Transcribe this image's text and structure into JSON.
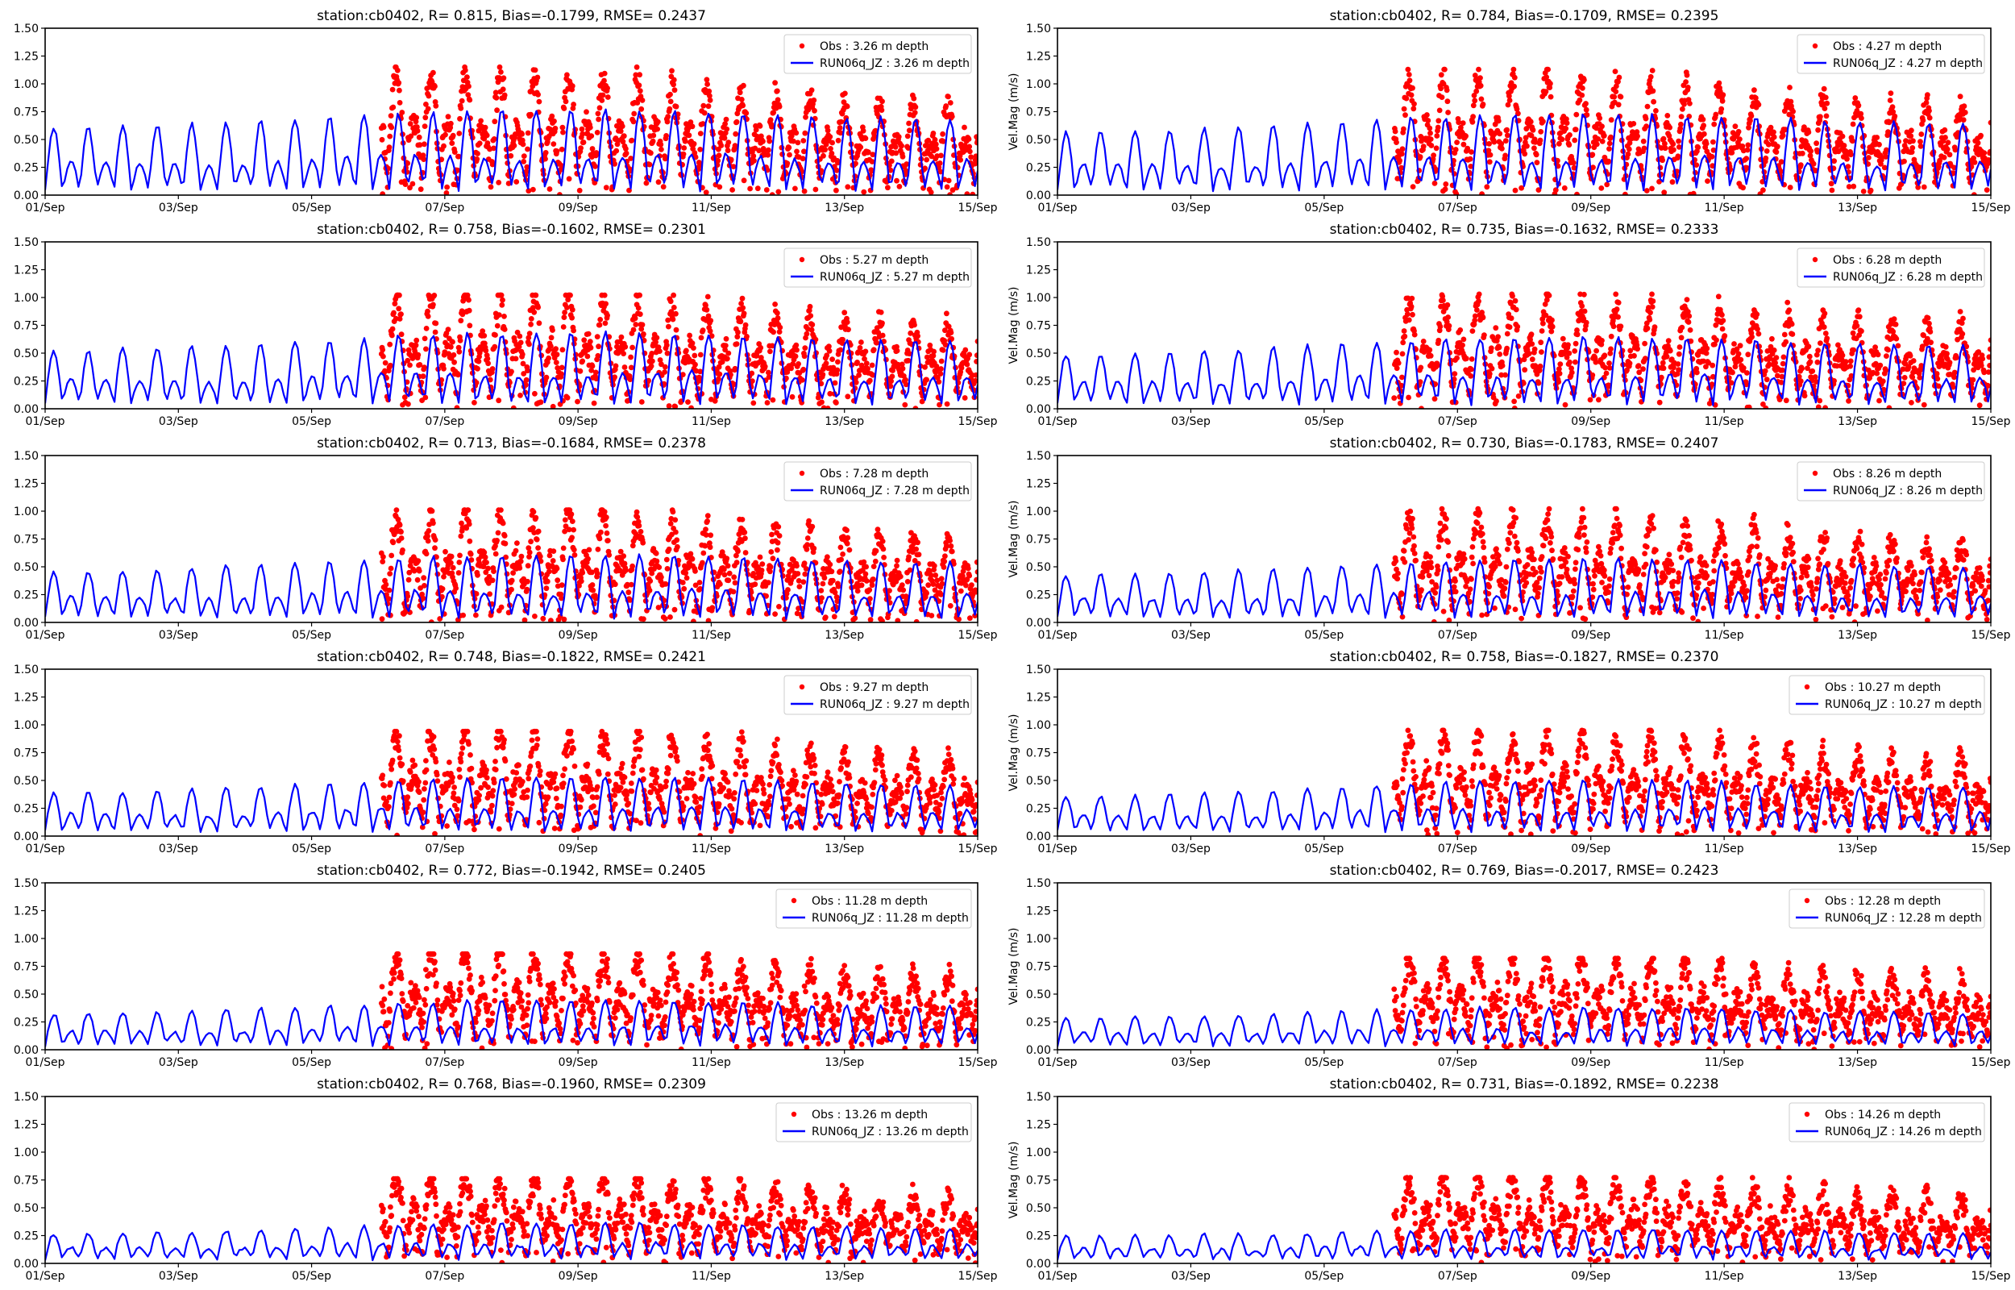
{
  "figure": {
    "type": "line+scatter",
    "xlim_labels": [
      "01/Sep",
      "15/Sep"
    ],
    "x_ticks": [
      "01/Sep",
      "03/Sep",
      "05/Sep",
      "07/Sep",
      "09/Sep",
      "11/Sep",
      "13/Sep",
      "15/Sep"
    ],
    "y_ticks": [
      "0.00",
      "0.25",
      "0.50",
      "0.75",
      "1.00",
      "1.25",
      "1.50"
    ],
    "ylabel_right_column": "Vel.Mag (m/s)",
    "colors": {
      "obs": "#ff0000",
      "model": "#0000ff",
      "axis": "#000000",
      "legend_border": "#cccccc"
    }
  },
  "chart_data": [
    {
      "type": "line+scatter",
      "title": "station:cb0402, R= 0.815, Bias=-0.1799, RMSE= 0.2437",
      "ylabel": "",
      "ylim": [
        0,
        1.5
      ],
      "x_range_days": [
        1,
        15
      ],
      "series": [
        {
          "name": "Obs : 3.26 m depth",
          "kind": "scatter",
          "start_day": 6.05,
          "end_day": 15,
          "peak_max": 1.15,
          "peak_typ": 0.95
        },
        {
          "name": "RUN06q_JZ : 3.26 m depth",
          "kind": "line",
          "start_day": 1,
          "end_day": 15,
          "peak_early": 0.56,
          "peak_late": 0.82
        }
      ]
    },
    {
      "type": "line+scatter",
      "title": "station:cb0402, R= 0.784, Bias=-0.1709, RMSE= 0.2395",
      "ylabel": "Vel.Mag (m/s)",
      "ylim": [
        0,
        1.5
      ],
      "x_range_days": [
        1,
        15
      ],
      "series": [
        {
          "name": "Obs : 4.27 m depth",
          "kind": "scatter",
          "start_day": 6.05,
          "end_day": 15,
          "peak_max": 1.13,
          "peak_typ": 0.93
        },
        {
          "name": "RUN06q_JZ : 4.27 m depth",
          "kind": "line",
          "start_day": 1,
          "end_day": 15,
          "peak_early": 0.52,
          "peak_late": 0.78
        }
      ]
    },
    {
      "type": "line+scatter",
      "title": "station:cb0402, R= 0.758, Bias=-0.1602, RMSE= 0.2301",
      "ylabel": "",
      "ylim": [
        0,
        1.5
      ],
      "x_range_days": [
        1,
        15
      ],
      "series": [
        {
          "name": "Obs : 5.27 m depth",
          "kind": "scatter",
          "start_day": 6.05,
          "end_day": 15,
          "peak_max": 1.02,
          "peak_typ": 0.88
        },
        {
          "name": "RUN06q_JZ : 5.27 m depth",
          "kind": "line",
          "start_day": 1,
          "end_day": 15,
          "peak_early": 0.48,
          "peak_late": 0.74
        }
      ]
    },
    {
      "type": "line+scatter",
      "title": "station:cb0402, R= 0.735, Bias=-0.1632, RMSE= 0.2333",
      "ylabel": "Vel.Mag (m/s)",
      "ylim": [
        0,
        1.5
      ],
      "x_range_days": [
        1,
        15
      ],
      "series": [
        {
          "name": "Obs : 6.28 m depth",
          "kind": "scatter",
          "start_day": 6.05,
          "end_day": 15,
          "peak_max": 1.03,
          "peak_typ": 0.85
        },
        {
          "name": "RUN06q_JZ : 6.28 m depth",
          "kind": "line",
          "start_day": 1,
          "end_day": 15,
          "peak_early": 0.44,
          "peak_late": 0.7
        }
      ]
    },
    {
      "type": "line+scatter",
      "title": "station:cb0402, R= 0.713, Bias=-0.1684, RMSE= 0.2378",
      "ylabel": "",
      "ylim": [
        0,
        1.5
      ],
      "x_range_days": [
        1,
        15
      ],
      "series": [
        {
          "name": "Obs : 7.28 m depth",
          "kind": "scatter",
          "start_day": 6.05,
          "end_day": 15,
          "peak_max": 1.01,
          "peak_typ": 0.85
        },
        {
          "name": "RUN06q_JZ : 7.28 m depth",
          "kind": "line",
          "start_day": 1,
          "end_day": 15,
          "peak_early": 0.41,
          "peak_late": 0.66
        }
      ]
    },
    {
      "type": "line+scatter",
      "title": "station:cb0402, R= 0.730, Bias=-0.1783, RMSE= 0.2407",
      "ylabel": "Vel.Mag (m/s)",
      "ylim": [
        0,
        1.5
      ],
      "x_range_days": [
        1,
        15
      ],
      "series": [
        {
          "name": "Obs : 8.26 m depth",
          "kind": "scatter",
          "start_day": 6.05,
          "end_day": 15,
          "peak_max": 1.02,
          "peak_typ": 0.82
        },
        {
          "name": "RUN06q_JZ : 8.26 m depth",
          "kind": "line",
          "start_day": 1,
          "end_day": 15,
          "peak_early": 0.38,
          "peak_late": 0.62
        }
      ]
    },
    {
      "type": "line+scatter",
      "title": "station:cb0402, R= 0.748, Bias=-0.1822, RMSE= 0.2421",
      "ylabel": "",
      "ylim": [
        0,
        1.5
      ],
      "x_range_days": [
        1,
        15
      ],
      "series": [
        {
          "name": "Obs : 9.27 m depth",
          "kind": "scatter",
          "start_day": 6.05,
          "end_day": 15,
          "peak_max": 0.94,
          "peak_typ": 0.8
        },
        {
          "name": "RUN06q_JZ : 9.27 m depth",
          "kind": "line",
          "start_day": 1,
          "end_day": 15,
          "peak_early": 0.34,
          "peak_late": 0.58
        }
      ]
    },
    {
      "type": "line+scatter",
      "title": "station:cb0402, R= 0.758, Bias=-0.1827, RMSE= 0.2370",
      "ylabel": "Vel.Mag (m/s)",
      "ylim": [
        0,
        1.5
      ],
      "x_range_days": [
        1,
        15
      ],
      "series": [
        {
          "name": "Obs : 10.27 m depth",
          "kind": "scatter",
          "start_day": 6.05,
          "end_day": 15,
          "peak_max": 0.95,
          "peak_typ": 0.78
        },
        {
          "name": "RUN06q_JZ : 10.27 m depth",
          "kind": "line",
          "start_day": 1,
          "end_day": 15,
          "peak_early": 0.31,
          "peak_late": 0.55
        }
      ]
    },
    {
      "type": "line+scatter",
      "title": "station:cb0402, R= 0.772, Bias=-0.1942, RMSE= 0.2405",
      "ylabel": "",
      "ylim": [
        0,
        1.5
      ],
      "x_range_days": [
        1,
        15
      ],
      "series": [
        {
          "name": "Obs : 11.28 m depth",
          "kind": "scatter",
          "start_day": 6.05,
          "end_day": 15,
          "peak_max": 0.86,
          "peak_typ": 0.74
        },
        {
          "name": "RUN06q_JZ : 11.28 m depth",
          "kind": "line",
          "start_day": 1,
          "end_day": 15,
          "peak_early": 0.28,
          "peak_late": 0.48
        }
      ]
    },
    {
      "type": "line+scatter",
      "title": "station:cb0402, R= 0.769, Bias=-0.2017, RMSE= 0.2423",
      "ylabel": "Vel.Mag (m/s)",
      "ylim": [
        0,
        1.5
      ],
      "x_range_days": [
        1,
        15
      ],
      "series": [
        {
          "name": "Obs : 12.28 m depth",
          "kind": "scatter",
          "start_day": 6.05,
          "end_day": 15,
          "peak_max": 0.82,
          "peak_typ": 0.7
        },
        {
          "name": "RUN06q_JZ : 12.28 m depth",
          "kind": "line",
          "start_day": 1,
          "end_day": 15,
          "peak_early": 0.24,
          "peak_late": 0.4
        }
      ]
    },
    {
      "type": "line+scatter",
      "title": "station:cb0402, R= 0.768, Bias=-0.1960, RMSE= 0.2309",
      "ylabel": "",
      "ylim": [
        0,
        1.5
      ],
      "x_range_days": [
        1,
        15
      ],
      "series": [
        {
          "name": "Obs : 13.26 m depth",
          "kind": "scatter",
          "start_day": 6.05,
          "end_day": 15,
          "peak_max": 0.76,
          "peak_typ": 0.66
        },
        {
          "name": "RUN06q_JZ : 13.26 m depth",
          "kind": "line",
          "start_day": 1,
          "end_day": 15,
          "peak_early": 0.22,
          "peak_late": 0.38
        }
      ]
    },
    {
      "type": "line+scatter",
      "title": "station:cb0402, R= 0.731, Bias=-0.1892, RMSE= 0.2238",
      "ylabel": "Vel.Mag (m/s)",
      "ylim": [
        0,
        1.5
      ],
      "x_range_days": [
        1,
        15
      ],
      "series": [
        {
          "name": "Obs : 14.26 m depth",
          "kind": "scatter",
          "start_day": 6.05,
          "end_day": 15,
          "peak_max": 0.77,
          "peak_typ": 0.64
        },
        {
          "name": "RUN06q_JZ : 14.26 m depth",
          "kind": "line",
          "start_day": 1,
          "end_day": 15,
          "peak_early": 0.2,
          "peak_late": 0.3
        }
      ]
    }
  ]
}
